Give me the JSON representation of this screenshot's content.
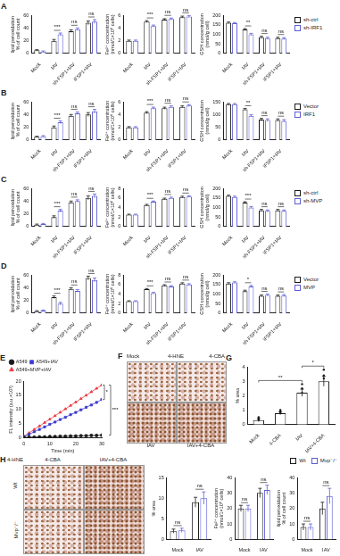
{
  "chart_data": [
    {
      "panel": "A",
      "type": "bar",
      "ylabel": [
        "lipid peroxidation",
        "% of cell count"
      ],
      "categories": [
        "Mock",
        "IAV",
        "sh-FSP1+IAV",
        "iFSP1+IAV"
      ],
      "series": [
        {
          "name": "sh-ctrl",
          "color": "#1a1a1a",
          "values": [
            5,
            20,
            35,
            48
          ],
          "errors": [
            1,
            2,
            2,
            3
          ]
        },
        {
          "name": "sh-IRF1",
          "color": "#5c5cd6",
          "values": [
            3,
            30,
            38,
            50
          ],
          "errors": [
            1,
            2,
            2,
            3
          ]
        }
      ],
      "ylim": [
        0,
        60
      ],
      "yticks": [
        0,
        20,
        40,
        60
      ],
      "sig": [
        null,
        "***",
        "ns",
        "ns"
      ]
    },
    {
      "type": "bar",
      "ylabel": [
        "Fe²⁺ concentration",
        "(nmol/1×10⁶ cells)"
      ],
      "categories": [
        "Mock",
        "IAV",
        "sh-FSP1+IAV",
        "iFSP1+IAV"
      ],
      "series": [
        {
          "name": "sh-ctrl",
          "color": "#1a1a1a",
          "values": [
            2.0,
            5.0,
            5.3,
            5.7
          ],
          "errors": [
            0.1,
            0.15,
            0.15,
            0.15
          ]
        },
        {
          "name": "sh-IRF1",
          "color": "#5c5cd6",
          "values": [
            2.0,
            4.3,
            5.4,
            5.8
          ],
          "errors": [
            0.1,
            0.15,
            0.15,
            0.15
          ]
        }
      ],
      "ylim": [
        0,
        6
      ],
      "yticks": [
        0,
        2,
        4,
        6
      ],
      "sig": [
        null,
        "***",
        "ns",
        "ns"
      ]
    },
    {
      "type": "bar",
      "ylabel": [
        "GSH concentration",
        "(nmol/g cell)"
      ],
      "categories": [
        "Mock",
        "IAV",
        "sh-FSP1+IAV",
        "iFSP1+IAV"
      ],
      "series": [
        {
          "name": "sh-ctrl",
          "color": "#1a1a1a",
          "values": [
            160,
            125,
            85,
            80
          ],
          "errors": [
            4,
            5,
            5,
            5
          ]
        },
        {
          "name": "sh-IRF1",
          "color": "#5c5cd6",
          "values": [
            158,
            100,
            80,
            78
          ],
          "errors": [
            4,
            5,
            5,
            5
          ]
        }
      ],
      "ylim": [
        0,
        200
      ],
      "yticks": [
        0,
        50,
        100,
        150,
        200
      ],
      "sig": [
        null,
        "**",
        "ns",
        "ns"
      ],
      "legend": "right"
    },
    {
      "panel": "B",
      "type": "bar",
      "ylabel": [
        "lipid peroxidation",
        "% of cell count"
      ],
      "categories": [
        "Mock",
        "IAV",
        "sh-FSP1+IAV",
        "iFSP1+IAV"
      ],
      "series": [
        {
          "name": "Vector",
          "color": "#1a1a1a",
          "values": [
            5,
            20,
            38,
            40
          ],
          "errors": [
            1,
            2,
            2,
            3
          ]
        },
        {
          "name": "IRF1",
          "color": "#5c5cd6",
          "values": [
            6,
            28,
            42,
            45
          ],
          "errors": [
            1,
            2,
            2,
            3
          ]
        }
      ],
      "ylim": [
        0,
        60
      ],
      "yticks": [
        0,
        20,
        40,
        60
      ],
      "sig": [
        null,
        "***",
        "ns",
        "ns"
      ]
    },
    {
      "type": "bar",
      "ylabel": [
        "Fe²⁺ concentration",
        "(nmol/1×10⁶ cells)"
      ],
      "categories": [
        "Mock",
        "IAV",
        "sh-FSP1+IAV",
        "iFSP1+IAV"
      ],
      "series": [
        {
          "name": "Vector",
          "color": "#1a1a1a",
          "values": [
            2.0,
            4.3,
            5.0,
            5.2
          ],
          "errors": [
            0.1,
            0.15,
            0.15,
            0.15
          ]
        },
        {
          "name": "IRF1",
          "color": "#5c5cd6",
          "values": [
            2.0,
            5.0,
            5.2,
            5.4
          ],
          "errors": [
            0.1,
            0.15,
            0.15,
            0.15
          ]
        }
      ],
      "ylim": [
        0,
        6
      ],
      "yticks": [
        0,
        2,
        4,
        6
      ],
      "sig": [
        null,
        "***",
        "ns",
        "ns"
      ]
    },
    {
      "type": "bar",
      "ylabel": [
        "GSH concentration",
        "(nmol/g cell)"
      ],
      "categories": [
        "Mock",
        "IAV",
        "sh-FSP1+IAV",
        "iFSP1+IAV"
      ],
      "series": [
        {
          "name": "Vector",
          "color": "#1a1a1a",
          "values": [
            140,
            120,
            80,
            78
          ],
          "errors": [
            3,
            4,
            5,
            5
          ]
        },
        {
          "name": "IRF1",
          "color": "#5c5cd6",
          "values": [
            140,
            95,
            78,
            75
          ],
          "errors": [
            3,
            4,
            5,
            5
          ]
        }
      ],
      "ylim": [
        0,
        150
      ],
      "yticks": [
        0,
        50,
        100,
        150
      ],
      "sig": [
        null,
        "**",
        "ns",
        "ns"
      ],
      "legend": "right"
    },
    {
      "panel": "C",
      "type": "bar",
      "ylabel": [
        "lipid peroxidation",
        "% of cell count"
      ],
      "categories": [
        "Mock",
        "IAV",
        "sh-FSP1+IAV",
        "iFSP1+IAV"
      ],
      "series": [
        {
          "name": "sh-ctrl",
          "color": "#1a1a1a",
          "values": [
            3,
            15,
            38,
            45
          ],
          "errors": [
            1,
            2,
            2,
            3
          ]
        },
        {
          "name": "sh-MVP",
          "color": "#5c5cd6",
          "values": [
            4,
            25,
            40,
            48
          ],
          "errors": [
            1,
            2,
            2,
            3
          ]
        }
      ],
      "ylim": [
        0,
        60
      ],
      "yticks": [
        0,
        20,
        40,
        60
      ],
      "sig": [
        null,
        "***",
        "ns",
        "ns"
      ]
    },
    {
      "type": "bar",
      "ylabel": [
        "Fe²⁺ concentration",
        "(nmol/1×10⁶ cells)"
      ],
      "categories": [
        "Mock",
        "IAV",
        "sh-FSP1+IAV",
        "iFSP1+IAV"
      ],
      "series": [
        {
          "name": "sh-ctrl",
          "color": "#1a1a1a",
          "values": [
            2.5,
            4.5,
            5.8,
            6.2
          ],
          "errors": [
            0.1,
            0.15,
            0.15,
            0.15
          ]
        },
        {
          "name": "sh-MVP",
          "color": "#5c5cd6",
          "values": [
            2.5,
            5.2,
            6.0,
            6.3
          ],
          "errors": [
            0.1,
            0.15,
            0.15,
            0.15
          ]
        }
      ],
      "ylim": [
        0,
        8
      ],
      "yticks": [
        0,
        2,
        4,
        6,
        8
      ],
      "sig": [
        null,
        "***",
        "ns",
        "ns"
      ]
    },
    {
      "type": "bar",
      "ylabel": [
        "GSH concentration",
        "(nmol/g cell)"
      ],
      "categories": [
        "Mock",
        "IAV",
        "sh-FSP1+IAV",
        "iFSP1+IAV"
      ],
      "series": [
        {
          "name": "sh-ctrl",
          "color": "#1a1a1a",
          "values": [
            160,
            125,
            85,
            85
          ],
          "errors": [
            4,
            5,
            5,
            5
          ]
        },
        {
          "name": "sh-MVP",
          "color": "#5c5cd6",
          "values": [
            155,
            100,
            82,
            82
          ],
          "errors": [
            4,
            5,
            5,
            5
          ]
        }
      ],
      "ylim": [
        0,
        200
      ],
      "yticks": [
        0,
        50,
        100,
        150,
        200
      ],
      "sig": [
        null,
        "***",
        "ns",
        "ns"
      ],
      "legend": "right"
    },
    {
      "panel": "D",
      "type": "bar",
      "ylabel": [
        "lipid peroxidation",
        "% of cell count"
      ],
      "categories": [
        "Mock",
        "IAV",
        "sh-FSP1+IAV",
        "iFSP1+IAV"
      ],
      "series": [
        {
          "name": "Vector",
          "color": "#1a1a1a",
          "values": [
            3,
            25,
            38,
            55
          ],
          "errors": [
            1,
            2,
            2,
            3
          ]
        },
        {
          "name": "MVP",
          "color": "#5c5cd6",
          "values": [
            4,
            15,
            35,
            52
          ],
          "errors": [
            1,
            2,
            2,
            3
          ]
        }
      ],
      "ylim": [
        0,
        60
      ],
      "yticks": [
        0,
        20,
        40,
        60
      ],
      "sig": [
        null,
        "***",
        "ns",
        "ns"
      ]
    },
    {
      "type": "bar",
      "ylabel": [
        "Fe²⁺ concentration",
        "(nmol/1×10⁶ cells)"
      ],
      "categories": [
        "Mock",
        "IAV",
        "sh-FSP1+IAV",
        "iFSP1+IAV"
      ],
      "series": [
        {
          "name": "Vector",
          "color": "#1a1a1a",
          "values": [
            2.5,
            5.0,
            5.8,
            6.2
          ],
          "errors": [
            0.1,
            0.15,
            0.15,
            0.15
          ]
        },
        {
          "name": "MVP",
          "color": "#5c5cd6",
          "values": [
            2.5,
            4.2,
            5.6,
            6.0
          ],
          "errors": [
            0.1,
            0.15,
            0.15,
            0.15
          ]
        }
      ],
      "ylim": [
        0,
        8
      ],
      "yticks": [
        0,
        2,
        4,
        6,
        8
      ],
      "sig": [
        null,
        "***",
        "ns",
        "ns"
      ]
    },
    {
      "type": "bar",
      "ylabel": [
        "GSH concentration",
        "(nmol/g cell)"
      ],
      "categories": [
        "Mock",
        "IAV",
        "sh-FSP1+IAV",
        "iFSP1+IAV"
      ],
      "series": [
        {
          "name": "Vector",
          "color": "#1a1a1a",
          "values": [
            155,
            115,
            90,
            90
          ],
          "errors": [
            4,
            5,
            5,
            5
          ]
        },
        {
          "name": "MVP",
          "color": "#5c5cd6",
          "values": [
            160,
            140,
            95,
            92
          ],
          "errors": [
            4,
            5,
            5,
            5
          ]
        }
      ],
      "ylim": [
        0,
        200
      ],
      "yticks": [
        0,
        50,
        100,
        150,
        200
      ],
      "sig": [
        null,
        "*",
        "ns",
        "ns"
      ],
      "legend": "right"
    },
    {
      "panel": "E",
      "type": "line",
      "xlabel": "Time (min)",
      "ylabel": "FL intensity (a.u.×10³)",
      "x": [
        0,
        2,
        4,
        6,
        8,
        10,
        12,
        14,
        16,
        18,
        20,
        22,
        24,
        26,
        28,
        30
      ],
      "series": [
        {
          "name": "A549",
          "color": "#1a1a1a",
          "marker": "circle",
          "values": [
            0.2,
            0.3,
            0.3,
            0.4,
            0.4,
            0.5,
            0.5,
            0.6,
            0.6,
            0.7,
            0.7,
            0.8,
            0.8,
            0.9,
            0.9,
            1.0
          ]
        },
        {
          "name": "A549+IAV",
          "color": "#3b3bd1",
          "marker": "square",
          "values": [
            0.5,
            1.3,
            2.2,
            3.0,
            3.9,
            4.8,
            5.6,
            6.5,
            7.3,
            8.2,
            9.0,
            9.9,
            10.8,
            11.6,
            12.5,
            13.5
          ]
        },
        {
          "name": "A549+MVP+IAV",
          "color": "#e8393f",
          "marker": "triangle",
          "values": [
            0.6,
            1.8,
            3.0,
            4.2,
            5.4,
            6.6,
            7.8,
            9.0,
            10.2,
            11.4,
            12.6,
            13.8,
            15.0,
            16.2,
            17.4,
            18.6
          ]
        }
      ],
      "xlim": [
        0,
        30
      ],
      "xticks": [
        0,
        10,
        20,
        30
      ],
      "ylim": [
        0,
        20
      ],
      "yticks": [
        0,
        5,
        10,
        15,
        20
      ],
      "comparisons": [
        {
          "pair": [
            1,
            2
          ],
          "label": "*"
        },
        {
          "pair": [
            0,
            2
          ],
          "label": "***"
        }
      ],
      "legend": "top-left"
    },
    {
      "panel": "G",
      "type": "bar",
      "ylabel": "% area",
      "categories": [
        "Mock",
        "4-CBA",
        "IAV",
        "IAV+4-CBA"
      ],
      "color": "#1a1a1a",
      "values": [
        0.3,
        0.78,
        2.2,
        3.0
      ],
      "errors": [
        0.1,
        0.1,
        0.25,
        0.35
      ],
      "points": [
        [
          0.1,
          0.2,
          0.3,
          0.4,
          0.5
        ],
        [
          0.5,
          0.7,
          0.9,
          1.0,
          0.8
        ],
        [
          1.5,
          2.0,
          2.5,
          2.2,
          2.8
        ],
        [
          2.0,
          2.6,
          3.2,
          3.8,
          3.4
        ]
      ],
      "ylim": [
        0,
        4
      ],
      "yticks": [
        0,
        1,
        2,
        3,
        4
      ],
      "comparisons": [
        {
          "pair": [
            0,
            2
          ],
          "label": "**"
        },
        {
          "pair": [
            2,
            3
          ],
          "label": "*"
        }
      ]
    },
    {
      "panel": "I",
      "type": "bar",
      "ylabel": "% area",
      "categories": [
        "Mock",
        "IAV"
      ],
      "series": [
        {
          "name": "Wt",
          "color": "#1a1a1a",
          "values": [
            2,
            9
          ],
          "errors": [
            0.5,
            1.2
          ]
        },
        {
          "name": "Mvp⁻/⁻",
          "color": "#5c5cd6",
          "values": [
            2.2,
            10
          ],
          "errors": [
            0.5,
            1.5
          ]
        }
      ],
      "ylim": [
        0,
        15
      ],
      "yticks": [
        0,
        5,
        10,
        15
      ],
      "sig": [
        "ns",
        "ns"
      ]
    },
    {
      "type": "bar",
      "ylabel": [
        "Fe²⁺ concentration",
        "(nmol/1×10⁶ cells)"
      ],
      "categories": [
        "Mock",
        "IAV"
      ],
      "series": [
        {
          "name": "Wt",
          "color": "#1a1a1a",
          "values": [
            20,
            30
          ],
          "errors": [
            2,
            3
          ]
        },
        {
          "name": "Mvp⁻/⁻",
          "color": "#5c5cd6",
          "values": [
            20,
            32
          ],
          "errors": [
            2,
            3
          ]
        }
      ],
      "ylim": [
        0,
        40
      ],
      "yticks": [
        0,
        10,
        20,
        30,
        40
      ],
      "sig": [
        "ns",
        "ns"
      ]
    },
    {
      "type": "bar",
      "ylabel": [
        "lipid peroxidation",
        "% of cell count"
      ],
      "categories": [
        "Mock",
        "IAV"
      ],
      "series": [
        {
          "name": "Wt",
          "color": "#1a1a1a",
          "values": [
            8,
            20
          ],
          "errors": [
            2,
            4
          ]
        },
        {
          "name": "Mvp⁻/⁻",
          "color": "#5c5cd6",
          "values": [
            8,
            28
          ],
          "errors": [
            2,
            5
          ]
        }
      ],
      "ylim": [
        0,
        40
      ],
      "yticks": [
        0,
        10,
        20,
        30,
        40
      ],
      "sig": [
        "ns",
        "ns"
      ],
      "legend": "top-right"
    }
  ],
  "image_panels": [
    {
      "panel": "F",
      "title": "4-HNE",
      "labels": [
        "Mock",
        "4-CBA",
        "IAV",
        "IAV+4-CBA"
      ]
    },
    {
      "panel": "H",
      "title": "4-HNE",
      "columns": [
        "4-CBA",
        "IAV+4-CBA"
      ],
      "rows": [
        "Wt",
        "Mvp⁻/⁻"
      ]
    }
  ]
}
